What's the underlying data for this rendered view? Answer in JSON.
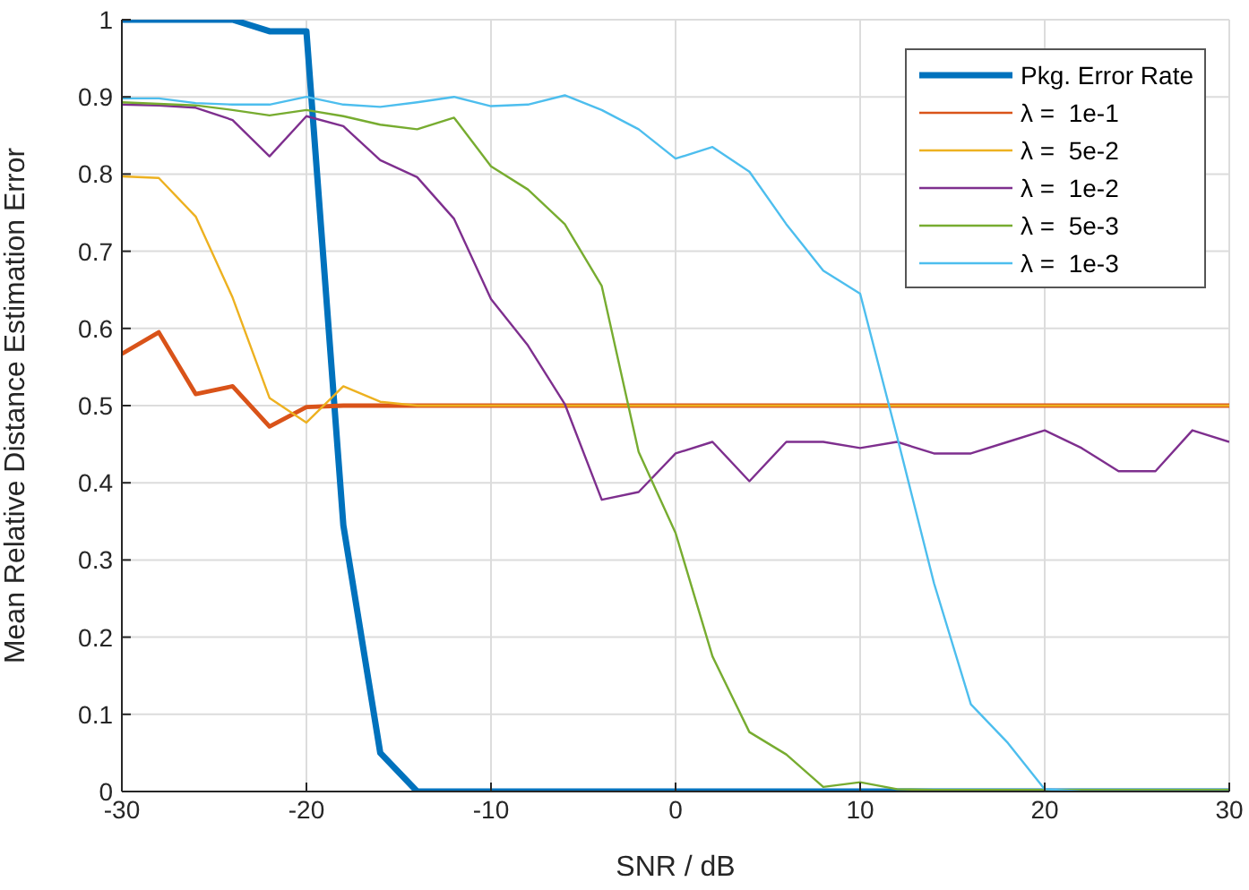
{
  "chart_data": {
    "type": "line",
    "xlabel": "SNR / dB",
    "ylabel": "Mean Relative Distance Estimation Error",
    "x": [
      -30,
      -28,
      -26,
      -24,
      -22,
      -20,
      -18,
      -16,
      -14,
      -12,
      -10,
      -8,
      -6,
      -4,
      -2,
      0,
      2,
      4,
      6,
      8,
      10,
      12,
      14,
      16,
      18,
      20,
      22,
      24,
      26,
      28,
      30
    ],
    "series": [
      {
        "name": "Pkg. Error Rate",
        "color": "#0072bd",
        "values": [
          1,
          1,
          1,
          1,
          0.985,
          0.985,
          0.345,
          0.05,
          0,
          0,
          0,
          0,
          0,
          0,
          0,
          0,
          0,
          0,
          0,
          0,
          0,
          0,
          0,
          0,
          0,
          0,
          0,
          0,
          0,
          0,
          0
        ]
      },
      {
        "name": "λ =  1e-1",
        "color": "#d95319",
        "values": [
          0.567,
          0.595,
          0.515,
          0.525,
          0.473,
          0.498,
          0.5,
          0.5,
          0.5,
          0.5,
          0.5,
          0.5,
          0.5,
          0.5,
          0.5,
          0.5,
          0.5,
          0.5,
          0.5,
          0.5,
          0.5,
          0.5,
          0.5,
          0.5,
          0.5,
          0.5,
          0.5,
          0.5,
          0.5,
          0.5,
          0.5
        ]
      },
      {
        "name": "λ =  5e-2",
        "color": "#edb120",
        "values": [
          0.797,
          0.795,
          0.745,
          0.64,
          0.51,
          0.478,
          0.525,
          0.505,
          0.5,
          0.5,
          0.5,
          0.5,
          0.5,
          0.5,
          0.5,
          0.5,
          0.5,
          0.5,
          0.5,
          0.5,
          0.5,
          0.5,
          0.5,
          0.5,
          0.5,
          0.5,
          0.5,
          0.5,
          0.5,
          0.5,
          0.5
        ]
      },
      {
        "name": "λ =  1e-2",
        "color": "#7e2f8e",
        "values": [
          0.89,
          0.889,
          0.886,
          0.87,
          0.823,
          0.875,
          0.862,
          0.818,
          0.796,
          0.742,
          0.638,
          0.578,
          0.502,
          0.378,
          0.388,
          0.438,
          0.453,
          0.402,
          0.453,
          0.453,
          0.445,
          0.453,
          0.438,
          0.438,
          0.453,
          0.468,
          0.445,
          0.415,
          0.415,
          0.468,
          0.453
        ]
      },
      {
        "name": "λ =  5e-3",
        "color": "#77ac30",
        "values": [
          0.893,
          0.891,
          0.889,
          0.883,
          0.876,
          0.883,
          0.875,
          0.864,
          0.858,
          0.873,
          0.81,
          0.78,
          0.735,
          0.655,
          0.44,
          0.335,
          0.175,
          0.077,
          0.048,
          0.006,
          0.012,
          0.003,
          0.002,
          0.002,
          0.002,
          0.002,
          0.002,
          0.002,
          0.002,
          0.002,
          0.002
        ]
      },
      {
        "name": "λ =  1e-3",
        "color": "#4dbeee",
        "values": [
          0.898,
          0.898,
          0.892,
          0.89,
          0.89,
          0.9,
          0.89,
          0.887,
          0.893,
          0.9,
          0.888,
          0.89,
          0.902,
          0.883,
          0.858,
          0.82,
          0.835,
          0.803,
          0.735,
          0.675,
          0.645,
          0.46,
          0.27,
          0.113,
          0.063,
          0.003,
          0,
          0,
          0,
          0,
          0
        ]
      }
    ],
    "xlim": [
      -30,
      30
    ],
    "xticks": [
      -30,
      -20,
      -10,
      0,
      10,
      20,
      30
    ],
    "ylim": [
      0,
      1
    ],
    "yticks": [
      0,
      0.1,
      0.2,
      0.3,
      0.4,
      0.5,
      0.6,
      0.7,
      0.8,
      0.9,
      1
    ],
    "grid": true,
    "legend": "top right",
    "marker": "none",
    "line_style": "solid"
  }
}
